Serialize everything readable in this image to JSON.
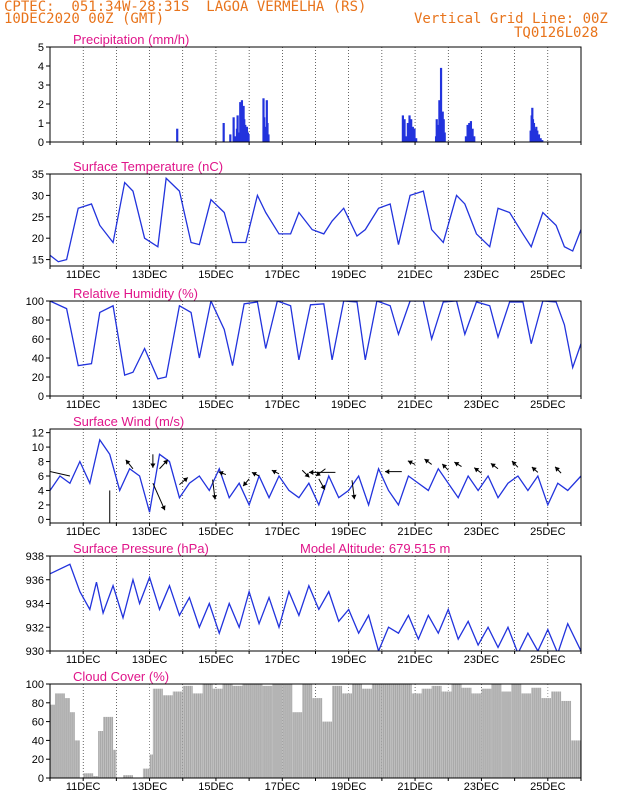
{
  "header": {
    "line1": "CPTEC:  051:34W-28:31S  LAGOA VERMELHA (RS)",
    "line2": "10DEC2020 00Z (GMT)",
    "grid_note": "Vertical Grid Line: 00Z",
    "code": "TQ0126L028"
  },
  "colors": {
    "header": "#e8741c",
    "title": "#e0158a",
    "line": "#2233dd",
    "bar": "#2233dd",
    "cloud": "#a9a9a9"
  },
  "x_ticks": [
    "11DEC",
    "13DEC",
    "15DEC",
    "17DEC",
    "19DEC",
    "21DEC",
    "23DEC",
    "25DEC"
  ],
  "chart_data": [
    {
      "id": "precip",
      "type": "bar",
      "title": "Precipitation (mm/h)",
      "ylim": [
        0,
        5
      ],
      "yticks": [
        0,
        1,
        2,
        3,
        4,
        5
      ],
      "series": [
        {
          "values": [
            [
              3.8,
              0.7
            ],
            [
              5.2,
              1.0
            ],
            [
              5.4,
              0.4
            ],
            [
              5.5,
              1.3
            ],
            [
              5.55,
              0.3
            ],
            [
              5.6,
              0.7
            ],
            [
              5.62,
              1.4
            ],
            [
              5.65,
              0.5
            ],
            [
              5.7,
              2.1
            ],
            [
              5.72,
              1.8
            ],
            [
              5.75,
              2.2
            ],
            [
              5.78,
              1.5
            ],
            [
              5.8,
              1.9
            ],
            [
              5.82,
              1.2
            ],
            [
              5.85,
              0.9
            ],
            [
              5.88,
              0.6
            ],
            [
              5.9,
              0.8
            ],
            [
              5.93,
              0.5
            ],
            [
              5.95,
              0.4
            ],
            [
              6.4,
              2.3
            ],
            [
              6.42,
              1.3
            ],
            [
              6.45,
              0.8
            ],
            [
              6.5,
              2.2
            ],
            [
              6.52,
              1.0
            ],
            [
              6.55,
              0.4
            ],
            [
              10.6,
              1.4
            ],
            [
              10.63,
              0.6
            ],
            [
              10.65,
              1.2
            ],
            [
              10.7,
              0.3
            ],
            [
              10.75,
              1.0
            ],
            [
              10.8,
              1.4
            ],
            [
              10.85,
              1.2
            ],
            [
              10.9,
              0.8
            ],
            [
              10.95,
              0.7
            ],
            [
              11.0,
              0.2
            ],
            [
              11.6,
              0.3
            ],
            [
              11.62,
              1.2
            ],
            [
              11.65,
              0.9
            ],
            [
              11.7,
              2.2
            ],
            [
              11.72,
              1.5
            ],
            [
              11.75,
              3.9
            ],
            [
              11.78,
              1.0
            ],
            [
              11.8,
              1.6
            ],
            [
              11.83,
              1.2
            ],
            [
              11.86,
              0.5
            ],
            [
              12.5,
              0.3
            ],
            [
              12.55,
              0.9
            ],
            [
              12.6,
              1.0
            ],
            [
              12.65,
              1.1
            ],
            [
              12.7,
              0.7
            ],
            [
              12.75,
              0.3
            ],
            [
              14.45,
              0.6
            ],
            [
              14.48,
              1.4
            ],
            [
              14.5,
              1.8
            ],
            [
              14.52,
              1.2
            ],
            [
              14.55,
              1.0
            ],
            [
              14.58,
              0.7
            ],
            [
              14.62,
              0.8
            ],
            [
              14.65,
              0.6
            ],
            [
              14.7,
              0.4
            ],
            [
              14.75,
              0.2
            ],
            [
              14.8,
              0.1
            ]
          ]
        }
      ]
    },
    {
      "id": "temp",
      "type": "line",
      "title": "Surface Temperature (nC)",
      "ylim": [
        13.5,
        35
      ],
      "yticks": [
        15,
        20,
        25,
        30,
        35
      ],
      "x": [
        0.0,
        0.25,
        0.5,
        0.85,
        1.25,
        1.5,
        1.9,
        2.25,
        2.5,
        2.85,
        3.25,
        3.5,
        3.9,
        4.25,
        4.5,
        4.85,
        5.25,
        5.5,
        5.9,
        6.25,
        6.5,
        6.9,
        7.25,
        7.5,
        7.9,
        8.25,
        8.5,
        8.85,
        9.25,
        9.5,
        9.9,
        10.25,
        10.5,
        10.85,
        11.25,
        11.5,
        11.85,
        12.25,
        12.5,
        12.85,
        13.25,
        13.5,
        13.85,
        14.25,
        14.5,
        14.85,
        15.25,
        15.5,
        15.75,
        16.0
      ],
      "series": [
        {
          "values": [
            16,
            14.5,
            15,
            27,
            28,
            23,
            19,
            33,
            31,
            20,
            18,
            34,
            31,
            19,
            18.5,
            29,
            26,
            19,
            19,
            30,
            26,
            21,
            21,
            26,
            22,
            21,
            24,
            27,
            20.5,
            22,
            27,
            28,
            18.5,
            30,
            31,
            22,
            19,
            30,
            28,
            21,
            18,
            27,
            26,
            21,
            18,
            26,
            23,
            18,
            17,
            22
          ]
        }
      ]
    },
    {
      "id": "rh",
      "type": "line",
      "title": "Relative Humidity (%)",
      "ylim": [
        0,
        100
      ],
      "yticks": [
        0,
        20,
        40,
        60,
        80,
        100
      ],
      "x": [
        0.0,
        0.5,
        0.85,
        1.25,
        1.5,
        1.9,
        2.25,
        2.5,
        2.85,
        3.25,
        3.5,
        3.9,
        4.25,
        4.5,
        4.85,
        5.25,
        5.5,
        5.85,
        6.25,
        6.5,
        6.85,
        7.25,
        7.5,
        7.85,
        8.25,
        8.5,
        8.85,
        9.25,
        9.5,
        9.85,
        10.25,
        10.5,
        10.85,
        11.25,
        11.5,
        11.85,
        12.25,
        12.5,
        12.85,
        13.25,
        13.5,
        13.85,
        14.25,
        14.5,
        14.85,
        15.25,
        15.5,
        15.75,
        16.0
      ],
      "series": [
        {
          "values": [
            100,
            92,
            32,
            34,
            88,
            95,
            22,
            25,
            50,
            18,
            20,
            95,
            88,
            40,
            100,
            70,
            32,
            97,
            99,
            50,
            100,
            95,
            38,
            96,
            97,
            38,
            100,
            99,
            38,
            100,
            95,
            65,
            100,
            100,
            60,
            99,
            100,
            65,
            99,
            95,
            62,
            99,
            99,
            55,
            100,
            99,
            75,
            30,
            55
          ]
        }
      ]
    },
    {
      "id": "wind",
      "type": "line",
      "title": "Surface Wind (m/s)",
      "ylim": [
        -0.5,
        12.5
      ],
      "yticks": [
        0,
        2,
        4,
        6,
        8,
        10,
        12
      ],
      "x": [
        0.0,
        0.3,
        0.6,
        0.9,
        1.2,
        1.5,
        1.8,
        2.1,
        2.4,
        2.7,
        3.0,
        3.3,
        3.6,
        3.9,
        4.2,
        4.5,
        4.8,
        5.1,
        5.4,
        5.7,
        6.0,
        6.3,
        6.6,
        6.9,
        7.2,
        7.5,
        7.8,
        8.1,
        8.4,
        8.7,
        9.0,
        9.3,
        9.6,
        9.9,
        10.2,
        10.5,
        10.8,
        11.1,
        11.4,
        11.7,
        12.0,
        12.3,
        12.6,
        12.9,
        13.2,
        13.5,
        13.8,
        14.1,
        14.4,
        14.7,
        15.0,
        15.3,
        15.6,
        16.0
      ],
      "series": [
        {
          "values": [
            4,
            6,
            5,
            8,
            5,
            11,
            9,
            4,
            7,
            6,
            1,
            9,
            8,
            3,
            5,
            6,
            4,
            7,
            3,
            5,
            2,
            6,
            3,
            6,
            4,
            3,
            5,
            2,
            6,
            3,
            4,
            6,
            2,
            7,
            4,
            2,
            6,
            5,
            4,
            7,
            5,
            3,
            6,
            4,
            6,
            3,
            5,
            6,
            4,
            6,
            2,
            5,
            4,
            6
          ]
        }
      ],
      "arrows": [
        [
          0.6,
          6,
          -2,
          0.6
        ],
        [
          1.8,
          4,
          0,
          -5
        ],
        [
          2.5,
          7,
          -0.6,
          1
        ],
        [
          3.1,
          9,
          0,
          -1.5
        ],
        [
          3.1,
          5,
          1,
          -3
        ],
        [
          3.3,
          7,
          0.7,
          1
        ],
        [
          3.9,
          4.8,
          0.7,
          0.8
        ],
        [
          4.9,
          5.5,
          0.2,
          -2.2
        ],
        [
          5.3,
          6.2,
          -0.6,
          0.3
        ],
        [
          6.0,
          5.6,
          -0.5,
          -0.8
        ],
        [
          6.3,
          6,
          -0.6,
          0.4
        ],
        [
          6.9,
          6.3,
          -0.6,
          0.4
        ],
        [
          7.6,
          6.8,
          0.6,
          -0.8
        ],
        [
          8.1,
          5.6,
          0.5,
          -1.2
        ],
        [
          8.3,
          7,
          -0.8,
          -0.8
        ],
        [
          8.6,
          6.5,
          -2.2,
          0
        ],
        [
          9.1,
          5.4,
          0.2,
          -2.1
        ],
        [
          10.6,
          6.6,
          -1.4,
          0
        ],
        [
          11.0,
          7.6,
          -0.6,
          0.4
        ],
        [
          11.5,
          7.6,
          -0.6,
          0.6
        ],
        [
          12.0,
          6.8,
          -0.5,
          0.7
        ],
        [
          12.4,
          7.3,
          -0.6,
          0.5
        ],
        [
          13.0,
          6.4,
          -0.6,
          0.6
        ],
        [
          13.5,
          7.0,
          -0.6,
          0.6
        ],
        [
          14.1,
          7.2,
          -0.5,
          0.7
        ],
        [
          14.7,
          6.5,
          -0.5,
          0.6
        ],
        [
          15.4,
          6.4,
          -0.5,
          0.7
        ]
      ]
    },
    {
      "id": "pres",
      "type": "line",
      "title": "Surface Pressure (hPa)",
      "subtitle": "Model Altitude: 679.515 m",
      "ylim": [
        930,
        938
      ],
      "yticks": [
        930,
        932,
        934,
        936,
        938
      ],
      "x": [
        0.0,
        0.6,
        0.9,
        1.2,
        1.4,
        1.6,
        1.9,
        2.2,
        2.5,
        2.7,
        3.0,
        3.3,
        3.6,
        3.9,
        4.2,
        4.5,
        4.8,
        5.1,
        5.4,
        5.7,
        6.0,
        6.3,
        6.6,
        6.9,
        7.2,
        7.5,
        7.8,
        8.1,
        8.4,
        8.7,
        9.0,
        9.3,
        9.6,
        9.9,
        10.2,
        10.5,
        10.8,
        11.1,
        11.4,
        11.7,
        12.0,
        12.3,
        12.6,
        12.9,
        13.2,
        13.5,
        13.8,
        14.1,
        14.4,
        14.7,
        15.0,
        15.3,
        15.6,
        16.0
      ],
      "series": [
        {
          "values": [
            936.5,
            937.3,
            935,
            933.5,
            935.8,
            933.2,
            935.5,
            932.8,
            936,
            934,
            936.2,
            933.5,
            935.5,
            933,
            934.5,
            932,
            934,
            931.5,
            934,
            932,
            935,
            932.3,
            934.5,
            932,
            935,
            933,
            935.5,
            933.5,
            935,
            932.5,
            933.5,
            931.5,
            933,
            930,
            932,
            931.5,
            933,
            931,
            933,
            931.5,
            933.5,
            931,
            932.5,
            930.5,
            932,
            930.3,
            932,
            929.8,
            931.5,
            930,
            931.8,
            929.8,
            932.3,
            930
          ]
        }
      ]
    },
    {
      "id": "cloud",
      "type": "bar",
      "title": "Cloud Cover (%)",
      "ylim": [
        0,
        100
      ],
      "yticks": [
        0,
        20,
        40,
        60,
        80,
        100
      ],
      "series": [
        {
          "values": [
            [
              0.0,
              78
            ],
            [
              0.15,
              90
            ],
            [
              0.3,
              85
            ],
            [
              0.45,
              70
            ],
            [
              0.6,
              40
            ],
            [
              0.75,
              0
            ],
            [
              1.0,
              5
            ],
            [
              1.2,
              2
            ],
            [
              1.45,
              50
            ],
            [
              1.6,
              65
            ],
            [
              1.7,
              30
            ],
            [
              1.85,
              0
            ],
            [
              2.2,
              3
            ],
            [
              2.5,
              0
            ],
            [
              2.8,
              10
            ],
            [
              3.0,
              25
            ],
            [
              3.1,
              95
            ],
            [
              3.4,
              88
            ],
            [
              3.7,
              92
            ],
            [
              4.0,
              98
            ],
            [
              4.3,
              90
            ],
            [
              4.6,
              100
            ],
            [
              4.9,
              95
            ],
            [
              5.2,
              100
            ],
            [
              5.5,
              98
            ],
            [
              5.8,
              100
            ],
            [
              6.1,
              100
            ],
            [
              6.4,
              98
            ],
            [
              6.7,
              100
            ],
            [
              7.0,
              100
            ],
            [
              7.3,
              70
            ],
            [
              7.6,
              100
            ],
            [
              7.9,
              85
            ],
            [
              8.2,
              60
            ],
            [
              8.5,
              98
            ],
            [
              8.8,
              90
            ],
            [
              9.1,
              100
            ],
            [
              9.4,
              95
            ],
            [
              9.7,
              100
            ],
            [
              10.0,
              100
            ],
            [
              10.3,
              100
            ],
            [
              10.6,
              100
            ],
            [
              10.9,
              90
            ],
            [
              11.2,
              95
            ],
            [
              11.5,
              98
            ],
            [
              11.8,
              92
            ],
            [
              12.1,
              100
            ],
            [
              12.4,
              96
            ],
            [
              12.7,
              90
            ],
            [
              13.0,
              95
            ],
            [
              13.3,
              100
            ],
            [
              13.6,
              92
            ],
            [
              13.9,
              100
            ],
            [
              14.2,
              90
            ],
            [
              14.5,
              96
            ],
            [
              14.8,
              85
            ],
            [
              15.1,
              92
            ],
            [
              15.4,
              82
            ],
            [
              15.7,
              40
            ],
            [
              15.9,
              8
            ]
          ]
        }
      ]
    }
  ]
}
